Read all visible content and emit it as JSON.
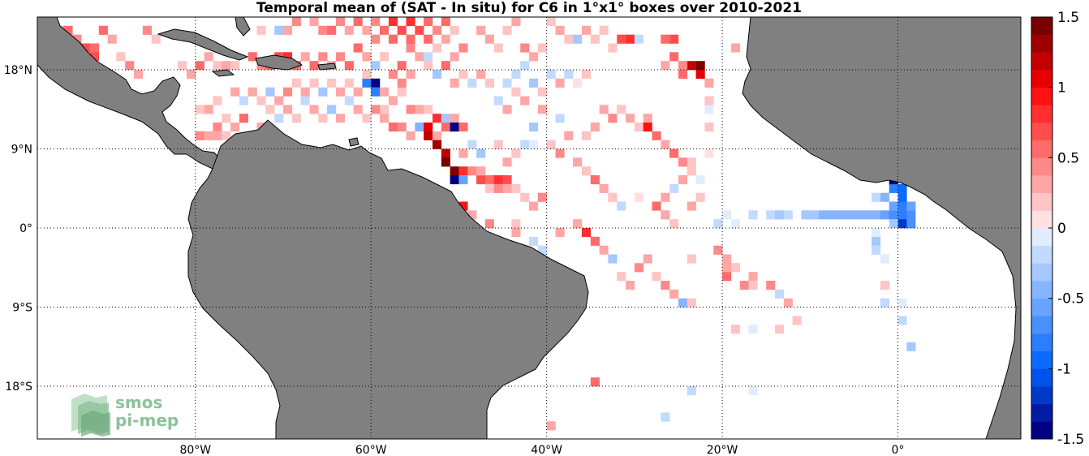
{
  "title": "Temporal mean of (SAT - In situ) for C6 in 1°x1° boxes over 2010-2021",
  "map": {
    "lat_ticks": [
      "18°N",
      "9°N",
      "0°",
      "9°S",
      "18°S"
    ],
    "lon_ticks": [
      "80°W",
      "60°W",
      "40°W",
      "20°W",
      "0°"
    ],
    "land_color": "#808080",
    "ocean_color": "#ffffff",
    "grid": "dotted"
  },
  "colorbar": {
    "min": -1.5,
    "max": 1.5,
    "labels": [
      "1.5",
      "1",
      "0.5",
      "0",
      "-0.5",
      "-1",
      "-1.5"
    ]
  },
  "logo": {
    "line1": "smos",
    "line2": "pi-mep"
  },
  "chart_data": {
    "type": "heatmap",
    "title": "Temporal mean of (SAT - In situ) for C6 in 1°x1° boxes over 2010-2021",
    "lon_range": [
      -98,
      14
    ],
    "lat_range": [
      -24,
      24
    ],
    "color_range": [
      -1.5,
      1.5
    ],
    "cells": [
      [
        -96,
        22,
        0.3
      ],
      [
        -95,
        22,
        0.6
      ],
      [
        -94,
        21,
        0.4
      ],
      [
        -93,
        20,
        0.7
      ],
      [
        -92,
        20,
        0.6
      ],
      [
        -92,
        19,
        0.7
      ],
      [
        -91,
        22,
        0.5
      ],
      [
        -90,
        21,
        0.3
      ],
      [
        -86,
        22,
        0.4
      ],
      [
        -85,
        21,
        0.2
      ],
      [
        -88,
        18,
        0.4
      ],
      [
        -89,
        19,
        0.2
      ],
      [
        -87,
        17,
        0.3
      ],
      [
        -82,
        18,
        0.2
      ],
      [
        -81,
        17,
        0.3
      ],
      [
        -80,
        18,
        0.5
      ],
      [
        -79,
        19,
        0.3
      ],
      [
        -78,
        18,
        0.2
      ],
      [
        -77,
        18,
        0.3
      ],
      [
        -76,
        18,
        0.2
      ],
      [
        -74,
        19,
        0.6
      ],
      [
        -73,
        18,
        0.4
      ],
      [
        -72,
        18,
        0.5
      ],
      [
        -71,
        19,
        0.7
      ],
      [
        -70,
        19,
        0.8
      ],
      [
        -69,
        18,
        0.6
      ],
      [
        -68,
        19,
        0.3
      ],
      [
        -67,
        18,
        0.5
      ],
      [
        -66,
        19,
        0.4
      ],
      [
        -65,
        18,
        0.3
      ],
      [
        -64,
        19,
        0.4
      ],
      [
        -63,
        18,
        0.6
      ],
      [
        -62,
        20,
        0.5
      ],
      [
        -61,
        19,
        0.3
      ],
      [
        -60,
        18,
        -0.3
      ],
      [
        -59,
        19,
        0.2
      ],
      [
        -58,
        17,
        0.4
      ],
      [
        -57,
        18,
        0.6
      ],
      [
        -56,
        20,
        0.4
      ],
      [
        -55,
        19,
        0.3
      ],
      [
        -54,
        18,
        0.2
      ],
      [
        -53,
        17,
        -0.3
      ],
      [
        -52,
        18,
        0.5
      ],
      [
        -51,
        16,
        0.3
      ],
      [
        -66,
        22,
        0.4
      ],
      [
        -67,
        23,
        0.3
      ],
      [
        -65,
        22,
        0.5
      ],
      [
        -64,
        23,
        0.4
      ],
      [
        -63,
        22,
        0.3
      ],
      [
        -62,
        23,
        0.5
      ],
      [
        -61,
        22,
        0.3
      ],
      [
        -60,
        23,
        0.4
      ],
      [
        -59,
        22,
        0.6
      ],
      [
        -58,
        23,
        0.8
      ],
      [
        -57,
        22,
        0.7
      ],
      [
        -56,
        23,
        0.8
      ],
      [
        -55,
        22,
        0.7
      ],
      [
        -54,
        23,
        0.5
      ],
      [
        -53,
        22,
        0.4
      ],
      [
        -52,
        21,
        0.3
      ],
      [
        -51,
        22,
        0.2
      ],
      [
        -60,
        21,
        0.4
      ],
      [
        -58,
        21,
        0.5
      ],
      [
        -56,
        21,
        0.6
      ],
      [
        -54,
        21,
        0.6
      ],
      [
        -52,
        23,
        0.5
      ],
      [
        -70,
        22,
        0.3
      ],
      [
        -69,
        23,
        0.4
      ],
      [
        -71,
        22,
        -0.3
      ],
      [
        -73,
        22,
        0.2
      ],
      [
        -60,
        16,
        -1.5
      ],
      [
        -60,
        15,
        -0.8
      ],
      [
        -59,
        15,
        0.3
      ],
      [
        -57,
        15,
        0.2
      ],
      [
        -56,
        13,
        0.4
      ],
      [
        -55,
        13,
        0.3
      ],
      [
        -54,
        13,
        0.2
      ],
      [
        -53,
        12,
        0.8
      ],
      [
        -52,
        12,
        -0.3
      ],
      [
        -51,
        12,
        0.3
      ],
      [
        -58,
        11,
        0.6
      ],
      [
        -57,
        11,
        0.4
      ],
      [
        -56,
        10,
        0.3
      ],
      [
        -55,
        11,
        -0.4
      ],
      [
        -54,
        11,
        1.0
      ],
      [
        -54,
        10,
        1.2
      ],
      [
        -53,
        10,
        0.3
      ],
      [
        -52,
        11,
        0.5
      ],
      [
        -51,
        11,
        -1.5
      ],
      [
        -50,
        11,
        0.6
      ],
      [
        -53,
        9,
        1.3
      ],
      [
        -52,
        8,
        1.2
      ],
      [
        -52,
        7,
        1.4
      ],
      [
        -51,
        6,
        1.5
      ],
      [
        -50,
        6,
        0.8
      ],
      [
        -51,
        5,
        -1.5
      ],
      [
        -50,
        5,
        -0.6
      ],
      [
        -49,
        6,
        0.4
      ],
      [
        -48,
        5,
        0.7
      ],
      [
        -47,
        5,
        0.6
      ],
      [
        -46,
        5,
        0.8
      ],
      [
        -45,
        5,
        0.7
      ],
      [
        -48,
        6,
        0.3
      ],
      [
        -47,
        4,
        0.2
      ],
      [
        -46,
        4,
        0.4
      ],
      [
        -45,
        4,
        0.3
      ],
      [
        -44,
        4,
        0.2
      ],
      [
        -43,
        3,
        0.2
      ],
      [
        -42,
        2,
        0.3
      ],
      [
        -41,
        3,
        0.4
      ],
      [
        -50,
        2,
        0.9
      ],
      [
        -49,
        1,
        0.3
      ],
      [
        -47,
        0,
        0.4
      ],
      [
        -44,
        0,
        0.2
      ],
      [
        -44,
        -1,
        0.3
      ],
      [
        -42,
        -2,
        -0.2
      ],
      [
        -41,
        -3,
        -0.2
      ],
      [
        -39,
        -1,
        0.3
      ],
      [
        -37,
        0,
        0.3
      ],
      [
        -36,
        -1,
        0.8
      ],
      [
        -35,
        -2,
        0.6
      ],
      [
        -34,
        -3,
        0.3
      ],
      [
        -33,
        -4,
        -0.3
      ],
      [
        -32,
        -6,
        0.2
      ],
      [
        -31,
        -7,
        0.3
      ],
      [
        -30,
        -5,
        0.4
      ],
      [
        -29,
        -4,
        0.3
      ],
      [
        -28,
        -6,
        0.2
      ],
      [
        -27,
        -7,
        0.4
      ],
      [
        -26,
        -8,
        0.3
      ],
      [
        -25,
        -9,
        -0.4
      ],
      [
        -24,
        -4,
        0.2
      ],
      [
        -24,
        -9,
        0.2
      ],
      [
        -21,
        -3,
        0.4
      ],
      [
        -20,
        -4,
        0.3
      ],
      [
        -19,
        -5,
        0.2
      ],
      [
        -20,
        -5,
        0.3
      ],
      [
        -20,
        -6,
        0.5
      ],
      [
        -18,
        -7,
        0.4
      ],
      [
        -17,
        -6,
        0.3
      ],
      [
        -17,
        -7,
        0.2
      ],
      [
        -15,
        -7,
        0.4
      ],
      [
        -14,
        -8,
        -0.2
      ],
      [
        -13,
        -9,
        0.3
      ],
      [
        -12,
        -11,
        0.2
      ],
      [
        -19,
        -12,
        0.2
      ],
      [
        -17,
        -12,
        -0.1
      ],
      [
        -14,
        -12,
        0.2
      ],
      [
        -41,
        -13,
        0.3
      ],
      [
        -35,
        -18,
        0.5
      ],
      [
        -24,
        -19,
        -0.2
      ],
      [
        -17,
        -19,
        -0.1
      ],
      [
        -27,
        -22,
        -0.2
      ],
      [
        -40,
        -23,
        0.3
      ],
      [
        -2,
        -9,
        -0.2
      ],
      [
        0,
        -9,
        -0.1
      ],
      [
        0,
        -11,
        -0.2
      ],
      [
        1,
        -14,
        -0.3
      ],
      [
        -2,
        -7,
        0.2
      ],
      [
        -21,
        0,
        -0.2
      ],
      [
        -20,
        1,
        -0.1
      ],
      [
        -19,
        0,
        -0.1
      ],
      [
        -17,
        1,
        -0.2
      ],
      [
        -15,
        1,
        -0.2
      ],
      [
        -14,
        1,
        -0.3
      ],
      [
        -13,
        1,
        -0.2
      ],
      [
        -11,
        1,
        -0.3
      ],
      [
        -10,
        1,
        -0.3
      ],
      [
        -9,
        1,
        -0.4
      ],
      [
        -8,
        1,
        -0.4
      ],
      [
        -7,
        1,
        -0.5
      ],
      [
        -6,
        1,
        -0.5
      ],
      [
        -5,
        1,
        -0.4
      ],
      [
        -4,
        1,
        -0.5
      ],
      [
        -3,
        1,
        -0.4
      ],
      [
        -2,
        1,
        -0.6
      ],
      [
        -1,
        1,
        -0.7
      ],
      [
        0,
        1,
        -0.8
      ],
      [
        1,
        1,
        -0.7
      ],
      [
        -1,
        2,
        -0.6
      ],
      [
        0,
        2,
        -0.8
      ],
      [
        1,
        2,
        -0.6
      ],
      [
        -2,
        3,
        -0.4
      ],
      [
        -1,
        4,
        -0.8
      ],
      [
        0,
        4,
        -1.0
      ],
      [
        -1,
        5,
        -1.4
      ],
      [
        0,
        3,
        -0.9
      ],
      [
        0,
        0,
        -1.2
      ],
      [
        -1,
        0,
        -0.3
      ],
      [
        -3,
        3,
        -0.2
      ],
      [
        -3,
        -2,
        -0.3
      ],
      [
        -3,
        -3,
        -0.2
      ],
      [
        -2,
        -4,
        -0.1
      ],
      [
        -3,
        -1,
        -0.1
      ],
      [
        1,
        0,
        -0.7
      ],
      [
        -34,
        13,
        0.3
      ],
      [
        -33,
        12,
        0.4
      ],
      [
        -32,
        13,
        0.2
      ],
      [
        -31,
        12,
        0.3
      ],
      [
        -30,
        11,
        0.2
      ],
      [
        -29,
        12,
        0.3
      ],
      [
        -29,
        11,
        0.9
      ],
      [
        -28,
        10,
        0.6
      ],
      [
        -27,
        9,
        0.3
      ],
      [
        -26,
        8,
        0.5
      ],
      [
        -25,
        7,
        0.4
      ],
      [
        -24,
        6,
        0.2
      ],
      [
        -25,
        5,
        0.3
      ],
      [
        -26,
        4,
        -0.2
      ],
      [
        -27,
        3,
        0.3
      ],
      [
        -28,
        2,
        0.6
      ],
      [
        -27,
        1,
        0.3
      ],
      [
        -26,
        0,
        0.2
      ],
      [
        -24,
        2,
        0.3
      ],
      [
        -23,
        3,
        0.2
      ],
      [
        -23,
        5,
        -0.1
      ],
      [
        -24,
        7,
        0.2
      ],
      [
        -22,
        8,
        0.1
      ],
      [
        -22,
        11,
        0.2
      ],
      [
        -22,
        13,
        -0.1
      ],
      [
        -22,
        16,
        0.3
      ],
      [
        -23,
        18,
        1.5
      ],
      [
        -24,
        18,
        1.2
      ],
      [
        -23,
        17,
        1.0
      ],
      [
        -25,
        17,
        0.6
      ],
      [
        -25,
        18,
        0.4
      ],
      [
        -26,
        19,
        0.5
      ],
      [
        -27,
        18,
        0.3
      ],
      [
        -26,
        21,
        0.7
      ],
      [
        -27,
        21,
        0.6
      ],
      [
        -31,
        21,
        0.8
      ],
      [
        -32,
        21,
        0.7
      ],
      [
        -33,
        20,
        0.2
      ],
      [
        -30,
        21,
        -0.2
      ],
      [
        -37,
        21,
        -0.3
      ],
      [
        -19,
        20,
        0.3
      ],
      [
        -22,
        14,
        0.2
      ],
      [
        -35,
        11,
        0.3
      ],
      [
        -36,
        10,
        0.2
      ],
      [
        -38,
        10,
        0.3
      ],
      [
        -39,
        8,
        0.4
      ],
      [
        -37,
        7,
        0.3
      ],
      [
        -36,
        6,
        0.2
      ],
      [
        -35,
        5,
        0.5
      ],
      [
        -34,
        4,
        0.3
      ],
      [
        -33,
        3,
        0.2
      ],
      [
        -32,
        2,
        -0.2
      ],
      [
        -30,
        3,
        0.1
      ],
      [
        -39,
        12,
        -0.2
      ],
      [
        -41,
        13,
        0.3
      ],
      [
        -42,
        11,
        -0.3
      ],
      [
        -40,
        9,
        0.2
      ],
      [
        -38,
        17,
        -0.2
      ],
      [
        -39,
        16,
        0.3
      ],
      [
        -40,
        17,
        -0.2
      ],
      [
        -41,
        15,
        0.2
      ],
      [
        -42,
        16,
        -0.3
      ],
      [
        -43,
        14,
        0.3
      ],
      [
        -44,
        15,
        0.2
      ],
      [
        -45,
        13,
        0.3
      ],
      [
        -46,
        14,
        -0.2
      ],
      [
        -46,
        9,
        0.2
      ],
      [
        -43,
        9,
        -0.2
      ],
      [
        -42,
        9,
        -0.1
      ],
      [
        -44,
        8,
        0.2
      ],
      [
        -45,
        7,
        0.3
      ],
      [
        -48,
        8,
        -0.3
      ],
      [
        -49,
        9,
        -0.2
      ],
      [
        -50,
        8,
        0.3
      ],
      [
        -47,
        16,
        0.2
      ],
      [
        -48,
        17,
        0.3
      ],
      [
        -49,
        16,
        -0.2
      ],
      [
        -50,
        17,
        0.2
      ],
      [
        -36,
        17,
        0.2
      ],
      [
        -37,
        16,
        0.1
      ],
      [
        -43,
        18,
        -0.2
      ],
      [
        -44,
        17,
        -0.2
      ],
      [
        -45,
        16,
        -0.2
      ],
      [
        -45,
        22,
        0.2
      ],
      [
        -44,
        23,
        0.3
      ],
      [
        -40,
        23,
        0.2
      ],
      [
        -39,
        22,
        0.3
      ],
      [
        -38,
        21,
        0.2
      ],
      [
        -35,
        21,
        0.2
      ],
      [
        -34,
        22,
        0.2
      ],
      [
        -36,
        22,
        0.3
      ],
      [
        -42,
        19,
        0.3
      ],
      [
        -41,
        20,
        0.2
      ],
      [
        -43,
        20,
        0.4
      ],
      [
        -46,
        20,
        0.2
      ],
      [
        -47,
        21,
        0.3
      ],
      [
        -48,
        22,
        0.3
      ],
      [
        -50,
        20,
        0.4
      ],
      [
        -51,
        19,
        0.3
      ],
      [
        -53,
        20,
        0.2
      ],
      [
        -54,
        19,
        -0.2
      ],
      [
        -56,
        17,
        0.3
      ],
      [
        -57,
        16,
        0.4
      ],
      [
        -58,
        14,
        0.3
      ],
      [
        -59,
        13,
        0.2
      ],
      [
        -59,
        12,
        0.3
      ],
      [
        -60,
        13,
        0.4
      ],
      [
        -61,
        12,
        0.2
      ],
      [
        -62,
        13,
        0.3
      ],
      [
        -63,
        14,
        -0.2
      ],
      [
        -64,
        12,
        0.3
      ],
      [
        -65,
        13,
        -0.3
      ],
      [
        -66,
        12,
        0.2
      ],
      [
        -67,
        13,
        0.3
      ],
      [
        -68,
        14,
        -0.2
      ],
      [
        -69,
        12,
        0.2
      ],
      [
        -70,
        13,
        0.3
      ],
      [
        -71,
        12,
        -0.2
      ],
      [
        -72,
        13,
        0.2
      ],
      [
        -73,
        11,
        0.3
      ],
      [
        -75,
        12,
        0.5
      ],
      [
        -76,
        11,
        0.3
      ],
      [
        -77,
        12,
        0.2
      ],
      [
        -78,
        11,
        0.4
      ],
      [
        -79,
        10,
        0.3
      ],
      [
        -80,
        10,
        0.4
      ],
      [
        -78,
        10,
        0.3
      ],
      [
        -77,
        10,
        0.2
      ],
      [
        -61,
        16,
        -0.8
      ],
      [
        -61,
        17,
        0.2
      ],
      [
        -62,
        15,
        0.3
      ],
      [
        -63,
        16,
        0.2
      ],
      [
        -64,
        15,
        0.3
      ],
      [
        -65,
        16,
        0.2
      ],
      [
        -66,
        15,
        -0.3
      ],
      [
        -67,
        16,
        0.2
      ],
      [
        -68,
        15,
        0.3
      ],
      [
        -69,
        16,
        0.2
      ],
      [
        -70,
        15,
        0.4
      ],
      [
        -71,
        14,
        0.3
      ],
      [
        -72,
        15,
        -0.3
      ],
      [
        -73,
        14,
        0.2
      ],
      [
        -74,
        15,
        0.3
      ],
      [
        -75,
        14,
        -0.2
      ],
      [
        -76,
        15,
        0.3
      ],
      [
        -78,
        14,
        0.2
      ],
      [
        -79,
        13,
        0.3
      ],
      [
        -80,
        13,
        0.2
      ]
    ]
  }
}
